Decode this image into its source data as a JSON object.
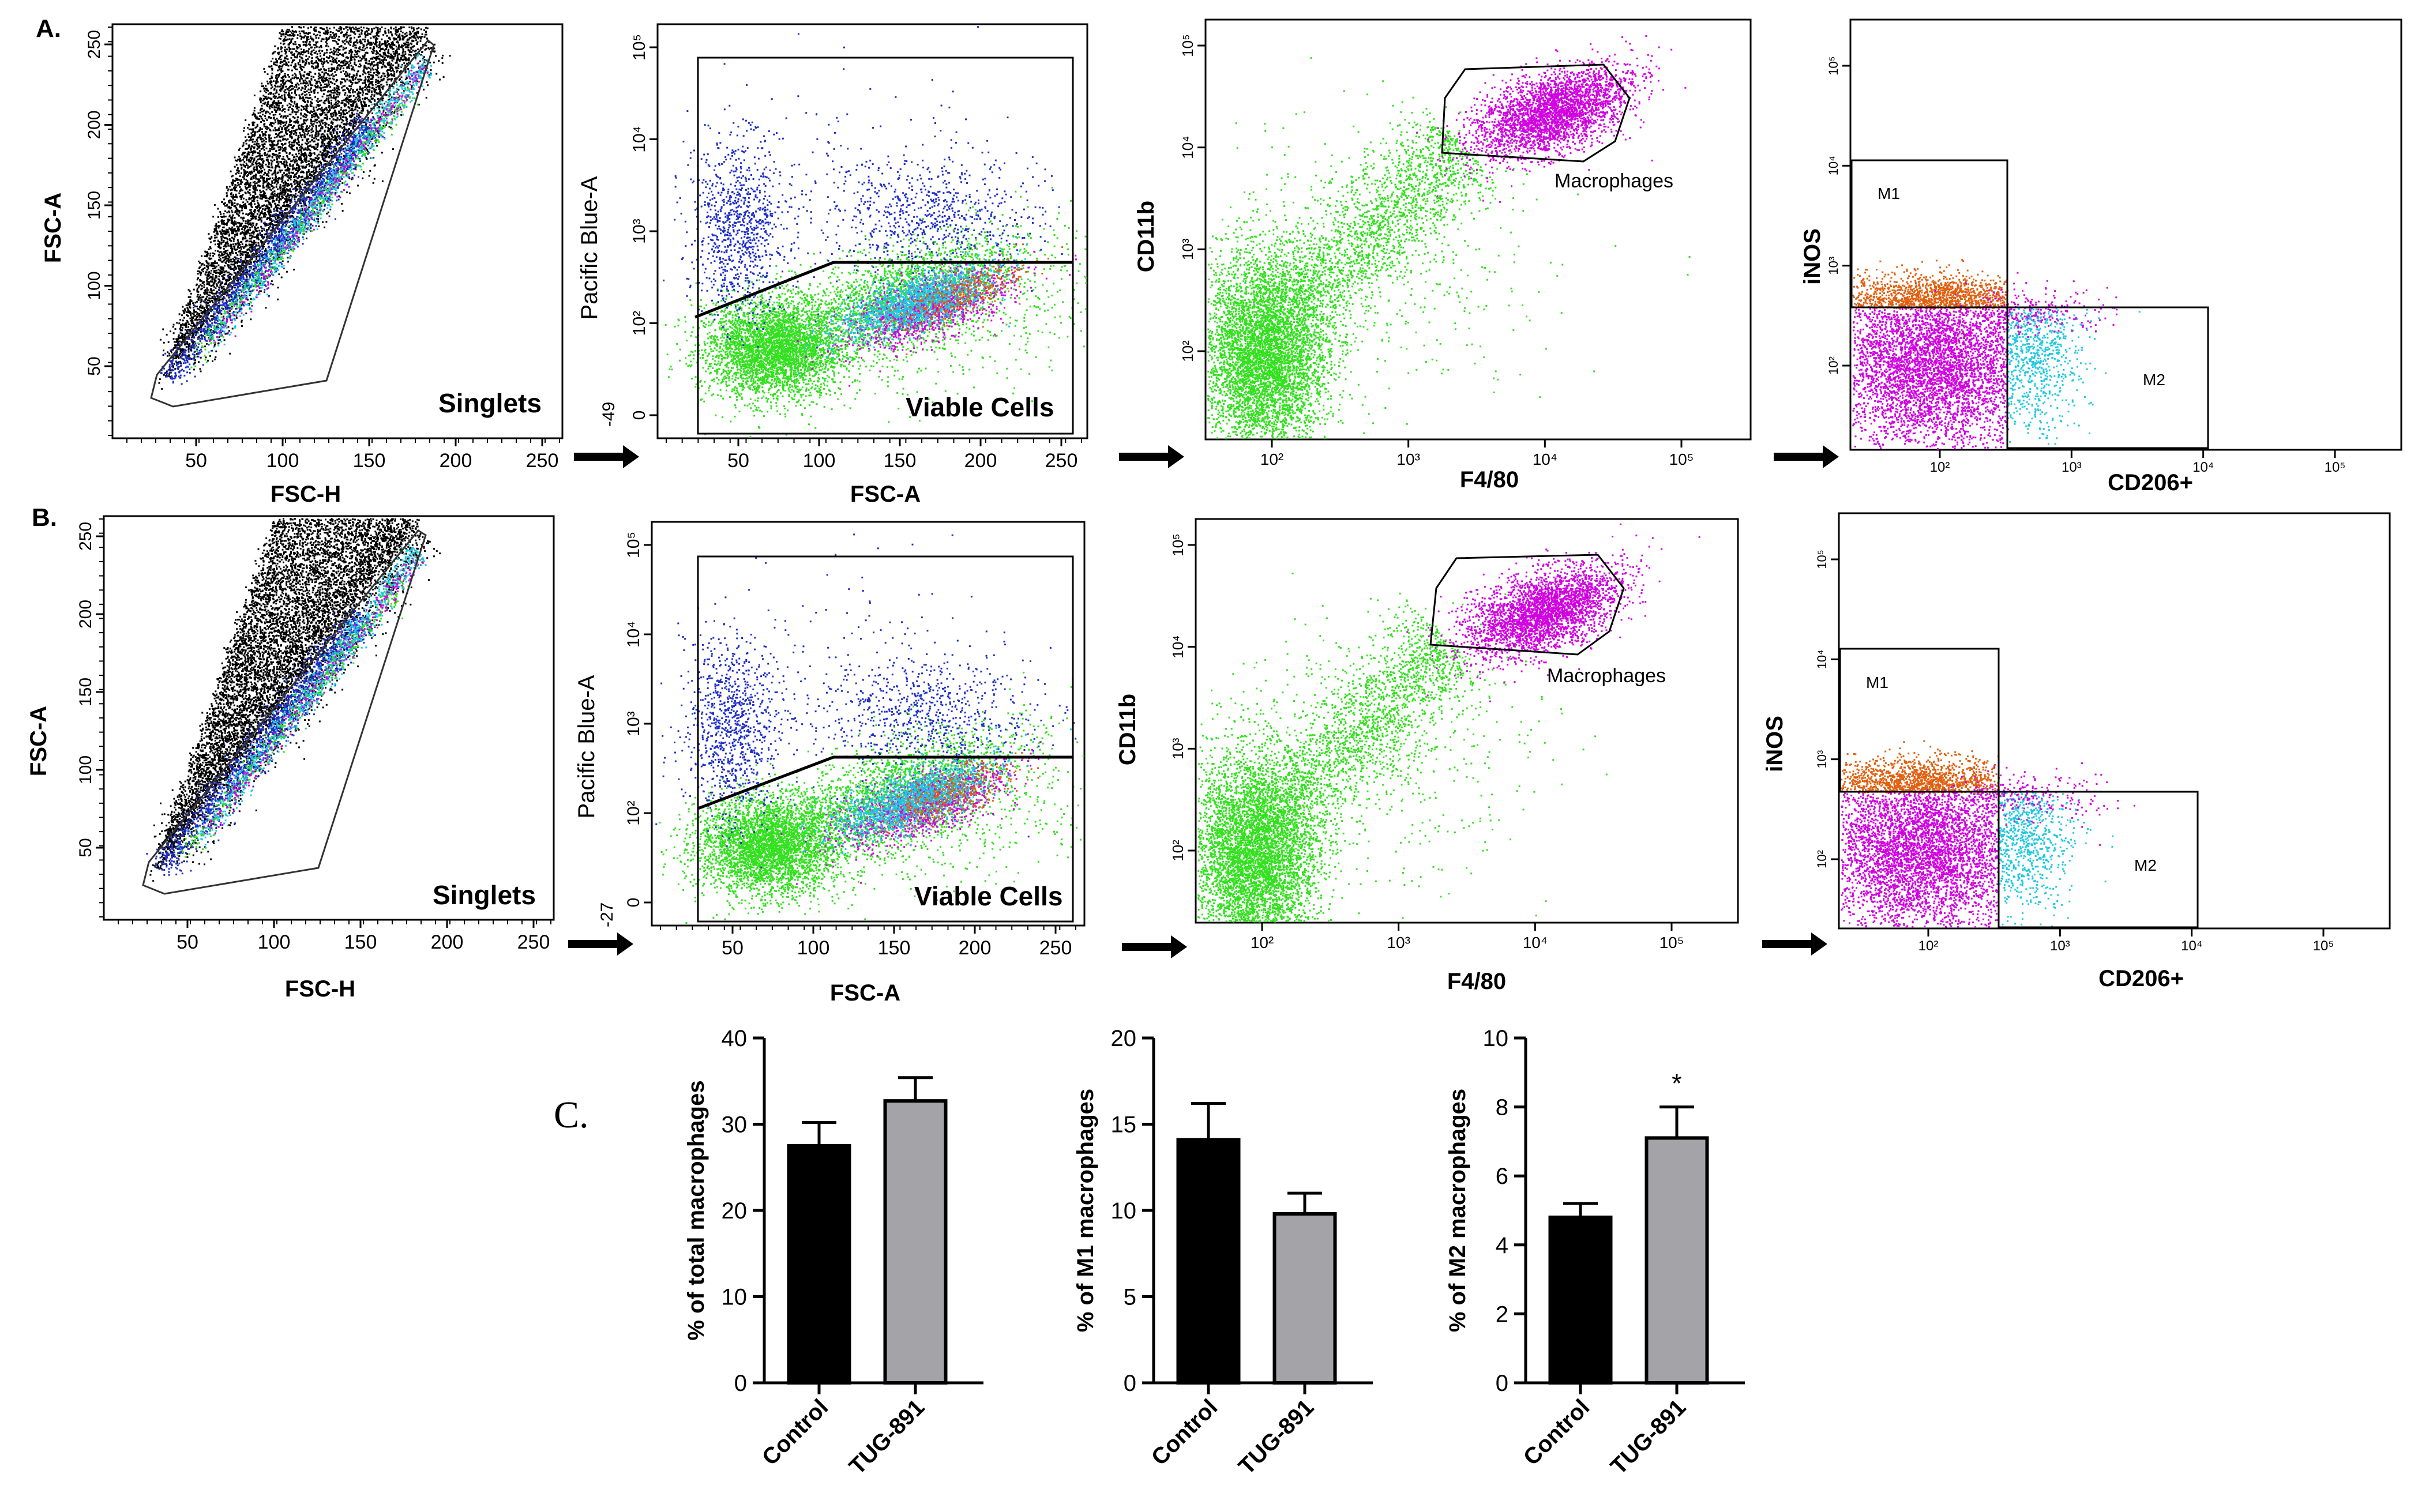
{
  "figure": {
    "row_a_label": "A.",
    "row_b_label": "B.",
    "row_c_label": "C."
  },
  "colors": {
    "black_events": "#000000",
    "blue_events": "#1f2fc8",
    "green_events": "#33e01f",
    "magenta_events": "#d000e0",
    "orange_events": "#e06010",
    "cyan_events": "#20c8e0",
    "control_bar": "#000000",
    "tug_bar": "#a3a3a8",
    "arrow": "#000000"
  },
  "rows": [
    {
      "label": "A.",
      "singlets": {
        "xlabel": "FSC-H",
        "ylabel": "FSC-A",
        "gate": "Singlets",
        "xticks": [
          "50",
          "100",
          "150",
          "200",
          "250"
        ],
        "yticks": [
          "50",
          "100",
          "150",
          "200",
          "250"
        ]
      },
      "viable": {
        "xlabel": "FSC-A",
        "ylabel": "Pacific Blue-A",
        "gate": "Viable Cells",
        "xticks": [
          "50",
          "100",
          "150",
          "200",
          "250"
        ],
        "yticks": [
          "0",
          "10²",
          "10³",
          "10⁴",
          "10⁵"
        ],
        "ybottom": "-49"
      },
      "macro": {
        "xlabel": "F4/80",
        "ylabel": "CD11b",
        "gate": "Macrophages",
        "xticks": [
          "10²",
          "10³",
          "10⁴",
          "10⁵"
        ],
        "yticks": [
          "10²",
          "10³",
          "10⁴",
          "10⁵"
        ]
      },
      "polar": {
        "xlabel": "CD206+",
        "ylabel": "iNOS",
        "gate_m1": "M1",
        "gate_m2": "M2",
        "xticks": [
          "10²",
          "10³",
          "10⁴",
          "10⁵"
        ],
        "yticks": [
          "10²",
          "10³",
          "10⁴",
          "10⁵"
        ]
      }
    },
    {
      "label": "B.",
      "singlets": {
        "xlabel": "FSC-H",
        "ylabel": "FSC-A",
        "gate": "Singlets",
        "xticks": [
          "50",
          "100",
          "150",
          "200",
          "250"
        ],
        "yticks": [
          "50",
          "100",
          "150",
          "200",
          "250"
        ]
      },
      "viable": {
        "xlabel": "FSC-A",
        "ylabel": "Pacific Blue-A",
        "gate": "Viable Cells",
        "xticks": [
          "50",
          "100",
          "150",
          "200",
          "250"
        ],
        "yticks": [
          "0",
          "10²",
          "10³",
          "10⁴",
          "10⁵"
        ],
        "ybottom": "-27"
      },
      "macro": {
        "xlabel": "F4/80",
        "ylabel": "CD11b",
        "gate": "Macrophages",
        "xticks": [
          "10²",
          "10³",
          "10⁴",
          "10⁵"
        ],
        "yticks": [
          "10²",
          "10³",
          "10⁴",
          "10⁵"
        ]
      },
      "polar": {
        "xlabel": "CD206+",
        "ylabel": "iNOS",
        "gate_m1": "M1",
        "gate_m2": "M2",
        "xticks": [
          "10²",
          "10³",
          "10⁴",
          "10⁵"
        ],
        "yticks": [
          "10²",
          "10³",
          "10⁴",
          "10⁵"
        ]
      }
    }
  ],
  "chart_data": [
    {
      "type": "bar",
      "title": "",
      "xlabel": "",
      "ylabel": "% of total macrophages",
      "categories": [
        "Control",
        "TUG-891"
      ],
      "values": [
        27.5,
        32.7
      ],
      "errors": [
        2.7,
        2.7
      ],
      "ylim": [
        0,
        40
      ],
      "yticks": [
        0,
        10,
        20,
        30,
        40
      ],
      "annotations": [
        "",
        ""
      ]
    },
    {
      "type": "bar",
      "title": "",
      "xlabel": "",
      "ylabel": "% of M1 macrophages",
      "categories": [
        "Control",
        "TUG-891"
      ],
      "values": [
        14.1,
        9.8
      ],
      "errors": [
        2.1,
        1.2
      ],
      "ylim": [
        0,
        20
      ],
      "yticks": [
        0,
        5,
        10,
        15,
        20
      ],
      "annotations": [
        "",
        ""
      ]
    },
    {
      "type": "bar",
      "title": "",
      "xlabel": "",
      "ylabel": "% of M2 macrophages",
      "categories": [
        "Control",
        "TUG-891"
      ],
      "values": [
        4.8,
        7.1
      ],
      "errors": [
        0.4,
        0.9
      ],
      "ylim": [
        0,
        10
      ],
      "yticks": [
        0,
        2,
        4,
        6,
        8,
        10
      ],
      "annotations": [
        "",
        "*"
      ]
    }
  ]
}
